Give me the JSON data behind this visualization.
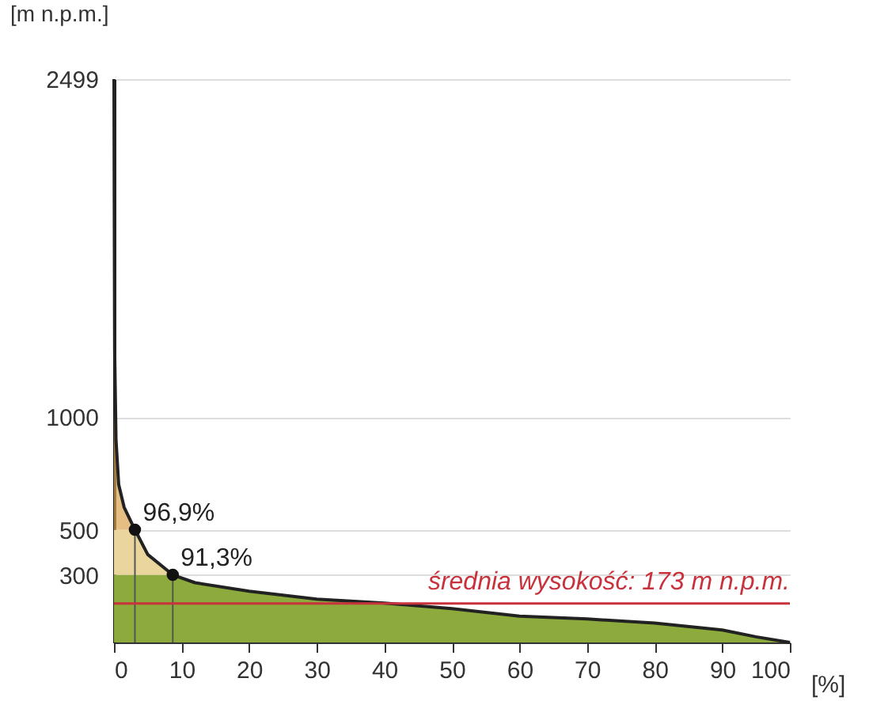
{
  "chart_data": {
    "type": "area",
    "stacked": true,
    "ylabel": "[m n.p.m.]",
    "xlabel": "[%]",
    "x": [
      0,
      0.1,
      0.3,
      0.7,
      1.5,
      3.1,
      5,
      8.7,
      12,
      20,
      30,
      40,
      50,
      60,
      70,
      80,
      90,
      95,
      100
    ],
    "series": [
      {
        "color": "#8cab3c",
        "values": [
          300,
          300,
          300,
          300,
          300,
          300,
          300,
          300,
          265,
          227,
          192,
          175,
          150,
          117,
          104,
          86,
          55,
          25,
          0
        ]
      },
      {
        "color": "#ead59c",
        "values": [
          200,
          200,
          200,
          200,
          200,
          200,
          90,
          0,
          0,
          0,
          0,
          0,
          0,
          0,
          0,
          0,
          0,
          0,
          0
        ]
      },
      {
        "color": "#d9a24e",
        "values": [
          1999,
          800,
          400,
          200,
          100,
          0,
          0,
          0,
          0,
          0,
          0,
          0,
          0,
          0,
          0,
          0,
          0,
          0,
          0
        ]
      },
      {
        "type": "lollipop",
        "color": "#111111",
        "x": [
          3.1,
          8.7
        ],
        "values": [
          500,
          300
        ]
      }
    ],
    "annotations": [
      {
        "text": "96,9%",
        "x": 3.1,
        "y": 500
      },
      {
        "text": "91,3%",
        "x": 8.7,
        "y": 300
      }
    ],
    "ref_lines": [
      {
        "axis": "y",
        "value": 173,
        "label": "średnia wysokość: 173 m n.p.m.",
        "color": "#c8323c"
      }
    ],
    "xlim": [
      0,
      100
    ],
    "xticks": [
      0,
      10,
      20,
      30,
      40,
      50,
      60,
      70,
      80,
      90,
      100
    ],
    "ylim": [
      0,
      2499
    ],
    "yticks": [
      300,
      500,
      1000,
      2499
    ],
    "grid": "y"
  }
}
